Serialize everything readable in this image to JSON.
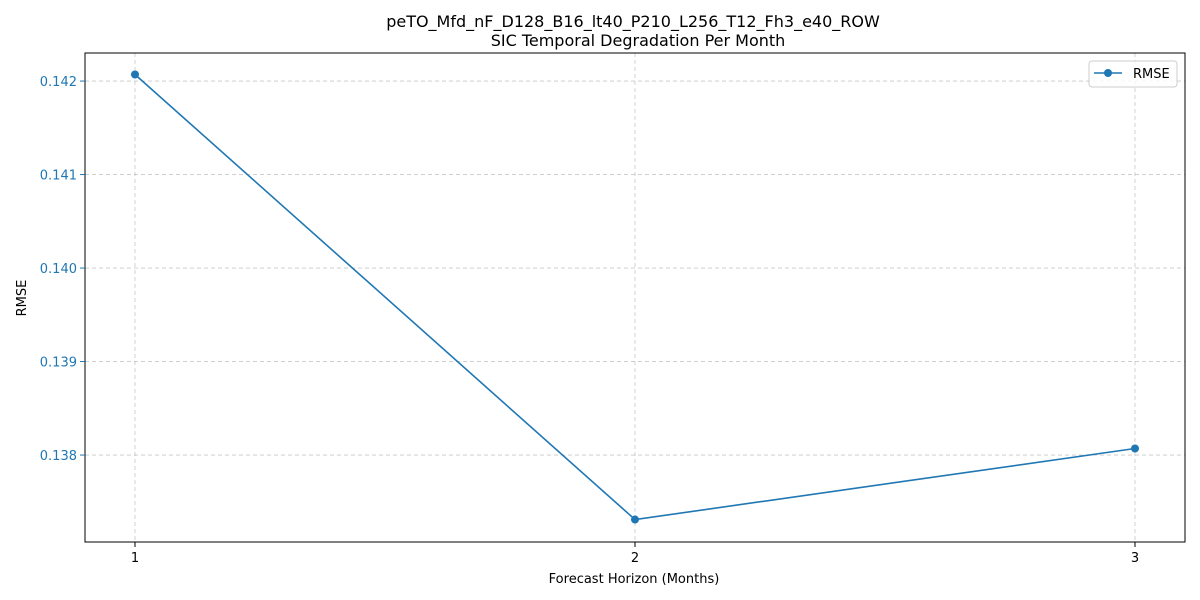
{
  "chart_data": {
    "type": "line",
    "title": "peTO_Mfd_nF_D128_B16_lt40_P210_L256_T12_Fh3_e40_ROW",
    "subtitle": "SIC Temporal Degradation Per Month",
    "xlabel": "Forecast Horizon (Months)",
    "ylabel": "RMSE",
    "x": [
      1,
      2,
      3
    ],
    "x_tick_labels": [
      "1",
      "2",
      "3"
    ],
    "xlim": [
      0.9,
      3.1
    ],
    "y_ticks": [
      0.138,
      0.139,
      0.14,
      0.141,
      0.142
    ],
    "y_tick_labels": [
      "0.138",
      "0.139",
      "0.140",
      "0.141",
      "0.142"
    ],
    "ylim": [
      0.13707,
      0.1423
    ],
    "series": [
      {
        "name": "RMSE",
        "values": [
          0.14207,
          0.13731,
          0.13807
        ],
        "color": "#1f77b4",
        "marker": "circle"
      }
    ],
    "grid": true,
    "legend_position": "top-right",
    "ytick_color": "#1f77b4"
  }
}
